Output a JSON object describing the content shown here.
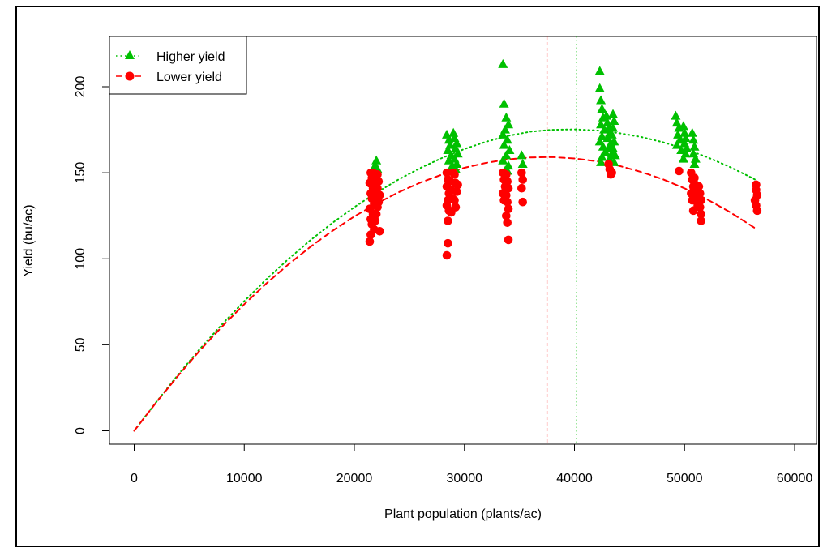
{
  "chart_data": {
    "type": "scatter",
    "title": "",
    "xlabel": "Plant population (plants/ac)",
    "ylabel": "Yield (bu/ac)",
    "xlim": [
      -2000,
      62000
    ],
    "ylim": [
      -8,
      225
    ],
    "x_ticks": [
      "0",
      "10000",
      "20000",
      "30000",
      "40000",
      "50000",
      "60000"
    ],
    "y_ticks": [
      "0",
      "50",
      "100",
      "150",
      "200"
    ],
    "grid": false,
    "legend": {
      "position": "top-left",
      "entries": [
        "Higher yield",
        "Lower yield"
      ]
    },
    "colors": {
      "higher": "#00c000",
      "lower": "#ff0000"
    },
    "series": [
      {
        "name": "Higher yield",
        "marker": "triangle",
        "curve_style": "dotted",
        "curve": [
          [
            0,
            0
          ],
          [
            2000,
            16.7
          ],
          [
            4000,
            32.7
          ],
          [
            6000,
            47.8
          ],
          [
            8000,
            62
          ],
          [
            10000,
            75.4
          ],
          [
            12000,
            88
          ],
          [
            14000,
            99.8
          ],
          [
            16000,
            110.7
          ],
          [
            18000,
            120.8
          ],
          [
            20000,
            130
          ],
          [
            22000,
            138.4
          ],
          [
            24000,
            146
          ],
          [
            26000,
            152.8
          ],
          [
            28000,
            158.7
          ],
          [
            30000,
            163.8
          ],
          [
            32000,
            168.1
          ],
          [
            34000,
            171.5
          ],
          [
            36000,
            173.9
          ],
          [
            38000,
            175
          ],
          [
            40000,
            175.2
          ],
          [
            42000,
            174.6
          ],
          [
            44000,
            173.1
          ],
          [
            46000,
            170.9
          ],
          [
            48000,
            167.8
          ],
          [
            50000,
            163.9
          ],
          [
            52000,
            159.2
          ],
          [
            54000,
            153.7
          ],
          [
            56000,
            147.4
          ],
          [
            56500,
            145.7
          ]
        ],
        "vline": 40200,
        "points": [
          [
            22000,
            157
          ],
          [
            21800,
            153
          ],
          [
            21700,
            151
          ],
          [
            22100,
            152
          ],
          [
            21900,
            154
          ],
          [
            28400,
            172
          ],
          [
            28600,
            169
          ],
          [
            28700,
            166
          ],
          [
            28500,
            163
          ],
          [
            28800,
            160
          ],
          [
            28600,
            157
          ],
          [
            28900,
            154
          ],
          [
            29000,
            173
          ],
          [
            29100,
            170
          ],
          [
            29300,
            167
          ],
          [
            29200,
            164
          ],
          [
            29400,
            161
          ],
          [
            29100,
            158
          ],
          [
            29300,
            155
          ],
          [
            28700,
            151
          ],
          [
            28900,
            151
          ],
          [
            29200,
            152
          ],
          [
            33500,
            213
          ],
          [
            33600,
            190
          ],
          [
            33800,
            182
          ],
          [
            34000,
            178
          ],
          [
            33700,
            175
          ],
          [
            33500,
            172
          ],
          [
            33900,
            169
          ],
          [
            33600,
            166
          ],
          [
            34100,
            163
          ],
          [
            33800,
            160
          ],
          [
            33500,
            157
          ],
          [
            34000,
            154
          ],
          [
            33700,
            151
          ],
          [
            33900,
            151
          ],
          [
            35200,
            160
          ],
          [
            35300,
            155
          ],
          [
            42300,
            209
          ],
          [
            42300,
            199
          ],
          [
            42400,
            192
          ],
          [
            42500,
            187
          ],
          [
            42600,
            182
          ],
          [
            42400,
            178
          ],
          [
            42700,
            175
          ],
          [
            42500,
            171
          ],
          [
            42300,
            168
          ],
          [
            42600,
            165
          ],
          [
            42800,
            162
          ],
          [
            42500,
            159
          ],
          [
            42400,
            156
          ],
          [
            42900,
            183
          ],
          [
            43000,
            179
          ],
          [
            43100,
            176
          ],
          [
            43200,
            173
          ],
          [
            43000,
            170
          ],
          [
            43300,
            167
          ],
          [
            43100,
            164
          ],
          [
            43400,
            161
          ],
          [
            43200,
            158
          ],
          [
            43500,
            184
          ],
          [
            43600,
            180
          ],
          [
            43500,
            176
          ],
          [
            43400,
            172
          ],
          [
            43600,
            168
          ],
          [
            43500,
            164
          ],
          [
            43700,
            160
          ],
          [
            43600,
            156
          ],
          [
            49200,
            183
          ],
          [
            49300,
            179
          ],
          [
            49500,
            176
          ],
          [
            49400,
            172
          ],
          [
            49600,
            169
          ],
          [
            49300,
            166
          ],
          [
            49700,
            163
          ],
          [
            49900,
            177
          ],
          [
            50000,
            173
          ],
          [
            50100,
            170
          ],
          [
            50000,
            167
          ],
          [
            50200,
            164
          ],
          [
            50100,
            161
          ],
          [
            49900,
            158
          ],
          [
            50700,
            173
          ],
          [
            50800,
            169
          ],
          [
            50900,
            165
          ],
          [
            50800,
            161
          ],
          [
            51000,
            158
          ],
          [
            50900,
            155
          ]
        ]
      },
      {
        "name": "Lower yield",
        "marker": "circle",
        "curve_style": "dashed",
        "curve": [
          [
            0,
            0
          ],
          [
            2000,
            16.5
          ],
          [
            4000,
            32.1
          ],
          [
            6000,
            46.9
          ],
          [
            8000,
            60.7
          ],
          [
            10000,
            73.6
          ],
          [
            12000,
            85.6
          ],
          [
            14000,
            96.7
          ],
          [
            16000,
            106.9
          ],
          [
            18000,
            116.2
          ],
          [
            20000,
            124.6
          ],
          [
            22000,
            132
          ],
          [
            24000,
            138.6
          ],
          [
            26000,
            144.3
          ],
          [
            28000,
            149
          ],
          [
            30000,
            152.9
          ],
          [
            32000,
            155.8
          ],
          [
            34000,
            157.8
          ],
          [
            36000,
            158.9
          ],
          [
            38000,
            159.1
          ],
          [
            40000,
            158.3
          ],
          [
            42000,
            156.7
          ],
          [
            44000,
            154.1
          ],
          [
            46000,
            150.6
          ],
          [
            48000,
            146.3
          ],
          [
            50000,
            140.9
          ],
          [
            52000,
            134.7
          ],
          [
            54000,
            127.6
          ],
          [
            56000,
            119.5
          ],
          [
            56500,
            117.4
          ]
        ],
        "vline": 37500,
        "points": [
          [
            21500,
            150
          ],
          [
            21600,
            147
          ],
          [
            21400,
            144
          ],
          [
            21700,
            141
          ],
          [
            21500,
            138
          ],
          [
            21600,
            135
          ],
          [
            21800,
            132
          ],
          [
            21400,
            129
          ],
          [
            21700,
            126
          ],
          [
            21500,
            123
          ],
          [
            21600,
            120
          ],
          [
            21800,
            117
          ],
          [
            21500,
            114
          ],
          [
            21400,
            110
          ],
          [
            21700,
            150
          ],
          [
            21900,
            146
          ],
          [
            21800,
            142
          ],
          [
            22000,
            138
          ],
          [
            21900,
            134
          ],
          [
            22100,
            130
          ],
          [
            22000,
            126
          ],
          [
            21900,
            122
          ],
          [
            22100,
            149
          ],
          [
            22200,
            145
          ],
          [
            22100,
            141
          ],
          [
            22300,
            137
          ],
          [
            22200,
            133
          ],
          [
            22300,
            116
          ],
          [
            28400,
            150
          ],
          [
            28500,
            146
          ],
          [
            28400,
            142
          ],
          [
            28600,
            138
          ],
          [
            28500,
            134
          ],
          [
            28400,
            131
          ],
          [
            28600,
            128
          ],
          [
            28500,
            122
          ],
          [
            28500,
            109
          ],
          [
            28400,
            102
          ],
          [
            28700,
            145
          ],
          [
            28800,
            140
          ],
          [
            28900,
            135
          ],
          [
            28800,
            127
          ],
          [
            29100,
            149
          ],
          [
            29200,
            144
          ],
          [
            29300,
            139
          ],
          [
            29100,
            134
          ],
          [
            29200,
            130
          ],
          [
            29000,
            150
          ],
          [
            29400,
            143
          ],
          [
            33500,
            150
          ],
          [
            33600,
            146
          ],
          [
            33700,
            142
          ],
          [
            33500,
            138
          ],
          [
            33600,
            134
          ],
          [
            33800,
            149
          ],
          [
            33900,
            145
          ],
          [
            34000,
            141
          ],
          [
            33800,
            137
          ],
          [
            33900,
            133
          ],
          [
            34000,
            129
          ],
          [
            33800,
            125
          ],
          [
            33900,
            121
          ],
          [
            34000,
            111
          ],
          [
            35200,
            150
          ],
          [
            35300,
            146
          ],
          [
            35200,
            141
          ],
          [
            35300,
            133
          ],
          [
            43100,
            155
          ],
          [
            43200,
            152
          ],
          [
            43300,
            149
          ],
          [
            43400,
            150
          ],
          [
            49500,
            151
          ],
          [
            50600,
            150
          ],
          [
            50700,
            146
          ],
          [
            50800,
            142
          ],
          [
            50600,
            138
          ],
          [
            50700,
            134
          ],
          [
            50900,
            147
          ],
          [
            51000,
            143
          ],
          [
            51100,
            139
          ],
          [
            51000,
            135
          ],
          [
            51200,
            131
          ],
          [
            50800,
            128
          ],
          [
            51300,
            142
          ],
          [
            51400,
            138
          ],
          [
            51500,
            134
          ],
          [
            51400,
            130
          ],
          [
            51500,
            126
          ],
          [
            51500,
            122
          ],
          [
            56500,
            143
          ],
          [
            56500,
            140
          ],
          [
            56600,
            137
          ],
          [
            56400,
            134
          ],
          [
            56500,
            131
          ],
          [
            56600,
            128
          ]
        ]
      }
    ]
  }
}
